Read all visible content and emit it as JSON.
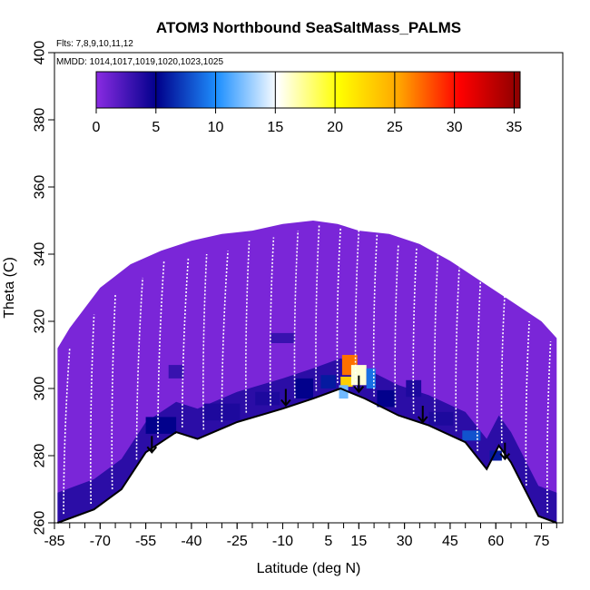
{
  "chart_data": {
    "type": "heatmap",
    "title": "ATOM3 Northbound SeaSaltMass_PALMS",
    "flights_label": "Flts: 7,8,9,10,11,12",
    "dates_label": "MMDD: 1014,1017,1019,1020,1023,1025",
    "xlabel": "Latitude (deg N)",
    "ylabel": "Theta (C)",
    "xlim": [
      -85,
      82
    ],
    "ylim": [
      260,
      400
    ],
    "x_ticks": [
      "-85",
      "-70",
      "-55",
      "-40",
      "-25",
      "-10",
      "5",
      "15",
      "30",
      "45",
      "60",
      "75"
    ],
    "x_tick_values": [
      -85,
      -70,
      -55,
      -40,
      -25,
      -10,
      5,
      15,
      30,
      45,
      60,
      75
    ],
    "x_minor_step": 5,
    "y_ticks": [
      "260",
      "280",
      "300",
      "320",
      "340",
      "360",
      "380",
      "400"
    ],
    "y_tick_values": [
      260,
      280,
      300,
      320,
      340,
      360,
      380,
      400
    ],
    "colorbar": {
      "min": 0,
      "max": 35.5,
      "ticks": [
        "0",
        "5",
        "10",
        "15",
        "20",
        "25",
        "30",
        "35"
      ],
      "tick_values": [
        0,
        5,
        10,
        15,
        20,
        25,
        30,
        35
      ],
      "colors": [
        "#8a2be2",
        "#00008b",
        "#1e90ff",
        "#ffffff",
        "#ffff00",
        "#ffa500",
        "#ff0000",
        "#8b0000"
      ]
    },
    "curtain_top": [
      [
        -84,
        312
      ],
      [
        -80,
        318
      ],
      [
        -75,
        324
      ],
      [
        -70,
        330
      ],
      [
        -60,
        337
      ],
      [
        -50,
        341
      ],
      [
        -40,
        344
      ],
      [
        -30,
        346
      ],
      [
        -20,
        347
      ],
      [
        -10,
        349
      ],
      [
        0,
        350
      ],
      [
        8,
        349
      ],
      [
        15,
        347
      ],
      [
        25,
        346
      ],
      [
        35,
        343
      ],
      [
        45,
        338
      ],
      [
        55,
        332
      ],
      [
        65,
        326
      ],
      [
        75,
        320
      ],
      [
        80,
        315
      ]
    ],
    "curtain_bottom": [
      [
        -84,
        260
      ],
      [
        -72,
        264
      ],
      [
        -63,
        270
      ],
      [
        -55,
        281
      ],
      [
        -45,
        287
      ],
      [
        -38,
        285
      ],
      [
        -25,
        290
      ],
      [
        -10,
        294
      ],
      [
        0,
        297
      ],
      [
        9,
        300
      ],
      [
        17,
        297
      ],
      [
        28,
        292
      ],
      [
        38,
        289
      ],
      [
        50,
        284
      ],
      [
        57,
        276
      ],
      [
        61,
        283
      ],
      [
        65,
        278
      ],
      [
        74,
        262
      ],
      [
        80,
        260
      ]
    ],
    "surface": [
      [
        -84,
        260
      ],
      [
        -72,
        264
      ],
      [
        -63,
        270
      ],
      [
        -55,
        281
      ],
      [
        -45,
        287
      ],
      [
        -38,
        285
      ],
      [
        -25,
        290
      ],
      [
        -10,
        294
      ],
      [
        0,
        297
      ],
      [
        9,
        300
      ],
      [
        17,
        297
      ],
      [
        28,
        292
      ],
      [
        38,
        289
      ],
      [
        50,
        284
      ],
      [
        57,
        276
      ],
      [
        61,
        283
      ],
      [
        65,
        278
      ],
      [
        74,
        262
      ],
      [
        80,
        260
      ]
    ],
    "arrows": [
      [
        -53,
        284
      ],
      [
        -9,
        298
      ],
      [
        15,
        302
      ],
      [
        36,
        293
      ],
      [
        63,
        282
      ]
    ],
    "hotspots": [
      {
        "lat": 12,
        "theta": 307,
        "w": 5,
        "h": 6,
        "value": 27
      },
      {
        "lat": 11,
        "theta": 302,
        "w": 4,
        "h": 3,
        "value": 23
      },
      {
        "lat": 15,
        "theta": 304,
        "w": 5,
        "h": 6,
        "value": 16
      },
      {
        "lat": 10,
        "theta": 299,
        "w": 3,
        "h": 4,
        "value": 12
      },
      {
        "lat": 19,
        "theta": 303,
        "w": 3,
        "h": 6,
        "value": 9
      },
      {
        "lat": 24,
        "theta": 297,
        "w": 6,
        "h": 5,
        "value": 5
      },
      {
        "lat": 5,
        "theta": 302,
        "w": 5,
        "h": 4,
        "value": 6
      },
      {
        "lat": -3,
        "theta": 300,
        "w": 6,
        "h": 6,
        "value": 5
      },
      {
        "lat": -30,
        "theta": 293,
        "w": 12,
        "h": 5,
        "value": 4
      },
      {
        "lat": -50,
        "theta": 289,
        "w": 10,
        "h": 5,
        "value": 5
      },
      {
        "lat": 42,
        "theta": 291,
        "w": 8,
        "h": 4,
        "value": 4
      },
      {
        "lat": 52,
        "theta": 286,
        "w": 6,
        "h": 3,
        "value": 8
      },
      {
        "lat": -45,
        "theta": 305,
        "w": 5,
        "h": 4,
        "value": 3
      },
      {
        "lat": 33,
        "theta": 300,
        "w": 5,
        "h": 5,
        "value": 4
      },
      {
        "lat": -15,
        "theta": 297,
        "w": 8,
        "h": 4,
        "value": 4
      },
      {
        "lat": -10,
        "theta": 315,
        "w": 8,
        "h": 3,
        "value": 3
      },
      {
        "lat": 60,
        "theta": 280,
        "w": 4,
        "h": 3,
        "value": 6
      }
    ],
    "flight_tracks": [
      {
        "lat_start": -82,
        "lat_end": -80,
        "theta_top": 312
      },
      {
        "lat_start": -73,
        "lat_end": -72,
        "theta_top": 322
      },
      {
        "lat_start": -66,
        "lat_end": -65,
        "theta_top": 328
      },
      {
        "lat_start": -58,
        "lat_end": -56,
        "theta_top": 333
      },
      {
        "lat_start": -51,
        "lat_end": -49,
        "theta_top": 338
      },
      {
        "lat_start": -43,
        "lat_end": -41,
        "theta_top": 339
      },
      {
        "lat_start": -36,
        "lat_end": -35,
        "theta_top": 340
      },
      {
        "lat_start": -30,
        "lat_end": -28,
        "theta_top": 341
      },
      {
        "lat_start": -22,
        "lat_end": -21,
        "theta_top": 344
      },
      {
        "lat_start": -14,
        "lat_end": -13,
        "theta_top": 345
      },
      {
        "lat_start": -6,
        "lat_end": -5,
        "theta_top": 347
      },
      {
        "lat_start": 1,
        "lat_end": 2,
        "theta_top": 349
      },
      {
        "lat_start": 8,
        "lat_end": 9,
        "theta_top": 348
      },
      {
        "lat_start": 14,
        "lat_end": 15,
        "theta_top": 347
      },
      {
        "lat_start": 20,
        "lat_end": 21,
        "theta_top": 346
      },
      {
        "lat_start": 27,
        "lat_end": 28,
        "theta_top": 343
      },
      {
        "lat_start": 33,
        "lat_end": 34,
        "theta_top": 342
      },
      {
        "lat_start": 40,
        "lat_end": 41,
        "theta_top": 340
      },
      {
        "lat_start": 47,
        "lat_end": 48,
        "theta_top": 336
      },
      {
        "lat_start": 54,
        "lat_end": 55,
        "theta_top": 333
      },
      {
        "lat_start": 62,
        "lat_end": 63,
        "theta_top": 329
      },
      {
        "lat_start": 70,
        "lat_end": 71,
        "theta_top": 320
      },
      {
        "lat_start": 77,
        "lat_end": 78,
        "theta_top": 314
      }
    ]
  }
}
